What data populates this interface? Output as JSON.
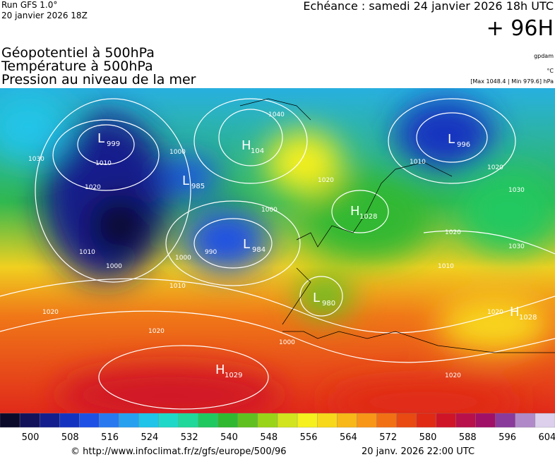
{
  "header": {
    "run": "Run GFS 1.0°",
    "run_date": "20 janvier 2026 18Z",
    "valid": "Echéance : samedi 24 janvier 2026 18h UTC",
    "lead": "+ 96H"
  },
  "fields": [
    "Géopotentiel à 500hPa",
    "Température à 500hPa",
    "Pression au niveau de la mer"
  ],
  "units": {
    "geopotential": "gpdam",
    "temperature": "°C",
    "pressure": "[Max 1048.4 | Min 979.6] hPa"
  },
  "centers": [
    {
      "letter": "L",
      "value": "999"
    },
    {
      "letter": "L",
      "value": "985"
    },
    {
      "letter": "H",
      "value": "104"
    },
    {
      "letter": "L",
      "value": "984"
    },
    {
      "letter": "H",
      "value": "1028"
    },
    {
      "letter": "L",
      "value": "980"
    },
    {
      "letter": "L",
      "value": "996"
    },
    {
      "letter": "H",
      "value": "1029"
    },
    {
      "letter": "H",
      "value": "1028"
    }
  ],
  "isobar_labels": [
    "1010",
    "1000",
    "1030",
    "1020",
    "1010",
    "1000",
    "1020",
    "1040",
    "1000",
    "990",
    "1000",
    "1010",
    "1020",
    "1020",
    "1010",
    "1030",
    "1020",
    "1020",
    "1030",
    "1020",
    "1010",
    "1020",
    "1000"
  ],
  "colorbar": {
    "colors": [
      "#0c0a2a",
      "#12125a",
      "#141e8c",
      "#1432c0",
      "#1e50e6",
      "#2a78f0",
      "#28a0f0",
      "#20c4e8",
      "#20d8c8",
      "#20d89a",
      "#20c860",
      "#30b830",
      "#60c020",
      "#9ad418",
      "#d2e41e",
      "#f6f01e",
      "#f8d81a",
      "#f8b818",
      "#f89618",
      "#f27014",
      "#e84a12",
      "#e02a14",
      "#d01428",
      "#b8104a",
      "#a01066",
      "#8a3a9a",
      "#b08ac8",
      "#dcd0ec"
    ],
    "labels": [
      "500",
      "508",
      "516",
      "524",
      "532",
      "540",
      "548",
      "556",
      "564",
      "572",
      "580",
      "588",
      "596",
      "604"
    ]
  },
  "footer": {
    "source": "© http://www.infoclimat.fr/z/gfs/europe/500/96",
    "generated": "20 janv. 2026 22:00 UTC"
  }
}
